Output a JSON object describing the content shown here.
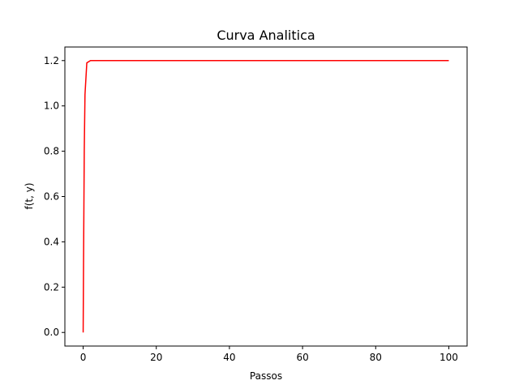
{
  "chart_data": {
    "type": "line",
    "title": "Curva Analitica",
    "xlabel": "Passos",
    "ylabel": "f(t, y)",
    "xlim": [
      -5,
      105
    ],
    "ylim": [
      -0.06,
      1.26
    ],
    "xticks": [
      0,
      20,
      40,
      60,
      80,
      100
    ],
    "xtick_labels": [
      "0",
      "20",
      "40",
      "60",
      "80",
      "100"
    ],
    "yticks": [
      0.0,
      0.2,
      0.4,
      0.6,
      0.8,
      1.0,
      1.2
    ],
    "ytick_labels": [
      "0.0",
      "0.2",
      "0.4",
      "0.6",
      "0.8",
      "1.0",
      "1.2"
    ],
    "grid": false,
    "series": [
      {
        "color": "#ff0000",
        "x": [
          0,
          0.1,
          0.3,
          0.5,
          1,
          2,
          5,
          10,
          20,
          40,
          60,
          80,
          100
        ],
        "y": [
          0.0,
          0.3,
          0.8,
          1.05,
          1.19,
          1.2,
          1.2,
          1.2,
          1.2,
          1.2,
          1.2,
          1.2,
          1.2
        ]
      }
    ]
  }
}
